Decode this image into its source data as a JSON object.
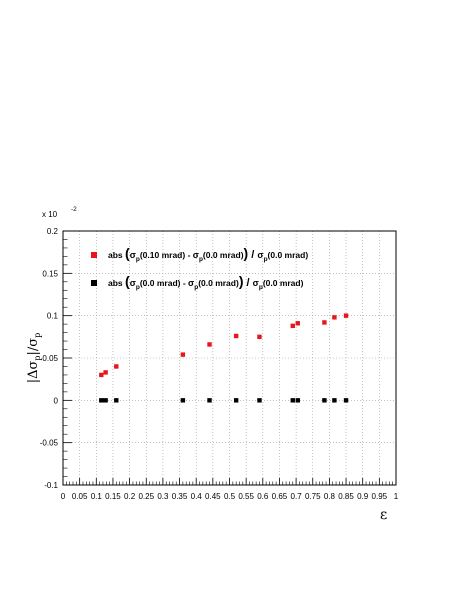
{
  "chart_data": {
    "type": "scatter",
    "xlabel": "ε",
    "ylabel": "|Δσp|/σp",
    "y_multiplier": "x 10",
    "y_multiplier_exp": "-2",
    "xlim": [
      0,
      1
    ],
    "ylim": [
      -0.1,
      0.2
    ],
    "x_ticks": [
      "0",
      "0.05",
      "0.1",
      "0.15",
      "0.2",
      "0.25",
      "0.3",
      "0.35",
      "0.4",
      "0.45",
      "0.5",
      "0.55",
      "0.6",
      "0.65",
      "0.7",
      "0.75",
      "0.8",
      "0.85",
      "0.9",
      "0.95",
      "1"
    ],
    "y_ticks": [
      "-0.1",
      "-0.05",
      "0",
      "0.05",
      "0.1",
      "0.15",
      "0.2"
    ],
    "grid": true,
    "legend_position": "top-left",
    "series": [
      {
        "name": "abs(σp(0.10 mrad) - σp(0.0 mrad))/σp(0.0 mrad)",
        "color": "#e8161b",
        "x": [
          0.115,
          0.128,
          0.16,
          0.36,
          0.44,
          0.52,
          0.59,
          0.69,
          0.705,
          0.785,
          0.815,
          0.85
        ],
        "y": [
          0.03,
          0.033,
          0.04,
          0.054,
          0.066,
          0.076,
          0.075,
          0.088,
          0.091,
          0.092,
          0.098,
          0.1
        ]
      },
      {
        "name": "abs(σp(0.0 mrad) - σp(0.0 mrad))/σp(0.0 mrad)",
        "color": "#000000",
        "x": [
          0.115,
          0.128,
          0.16,
          0.36,
          0.44,
          0.52,
          0.59,
          0.69,
          0.705,
          0.785,
          0.815,
          0.85
        ],
        "y": [
          0,
          0,
          0,
          0,
          0,
          0,
          0,
          0,
          0,
          0,
          0,
          0
        ]
      }
    ],
    "legend": [
      {
        "prefix": "abs",
        "num_left": "σ",
        "num_left_sub": "p",
        "num_left_arg": "(0.10 mrad)",
        "minus": " - ",
        "num_right": "σ",
        "num_right_sub": "p",
        "num_right_arg": "(0.0 mrad)",
        "den": "σ",
        "den_sub": "p",
        "den_arg": "(0.0 mrad)"
      },
      {
        "prefix": "abs",
        "num_left": "σ",
        "num_left_sub": "p",
        "num_left_arg": "(0.0 mrad)",
        "minus": " - ",
        "num_right": "σ",
        "num_right_sub": "p",
        "num_right_arg": "(0.0 mrad)",
        "den": "σ",
        "den_sub": "p",
        "den_arg": "(0.0 mrad)"
      }
    ]
  }
}
